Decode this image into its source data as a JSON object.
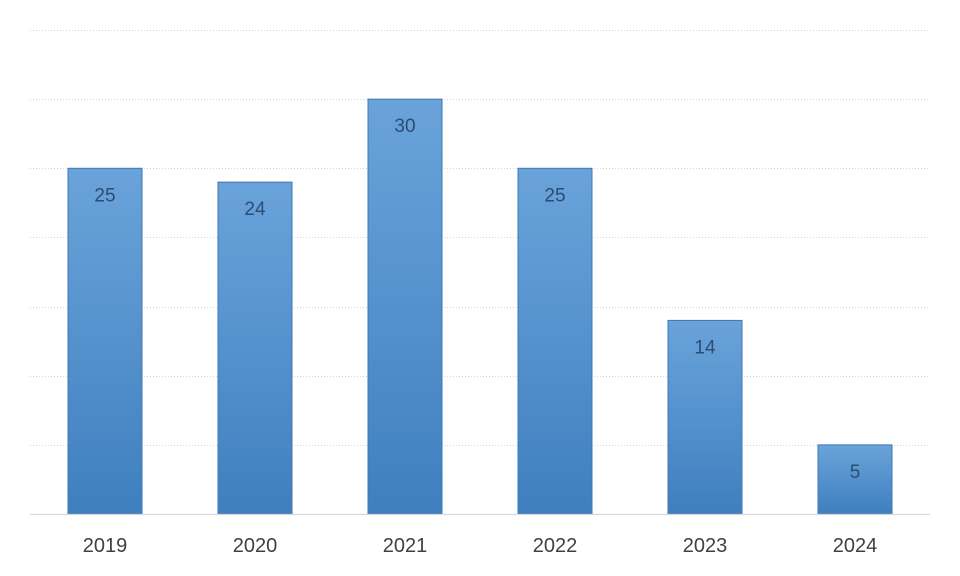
{
  "chart_data": {
    "type": "bar",
    "categories": [
      "2019",
      "2020",
      "2021",
      "2022",
      "2023",
      "2024"
    ],
    "values": [
      25,
      24,
      30,
      25,
      14,
      5
    ],
    "title": "",
    "xlabel": "",
    "ylabel": "",
    "ylim": [
      0,
      35
    ],
    "ytick_step": 5,
    "grid": true,
    "data_labels": true,
    "bar_color": "#4d8bc9",
    "bar_gradient": [
      "#6aa3da",
      "#3f7fbf"
    ],
    "legend": "none"
  }
}
